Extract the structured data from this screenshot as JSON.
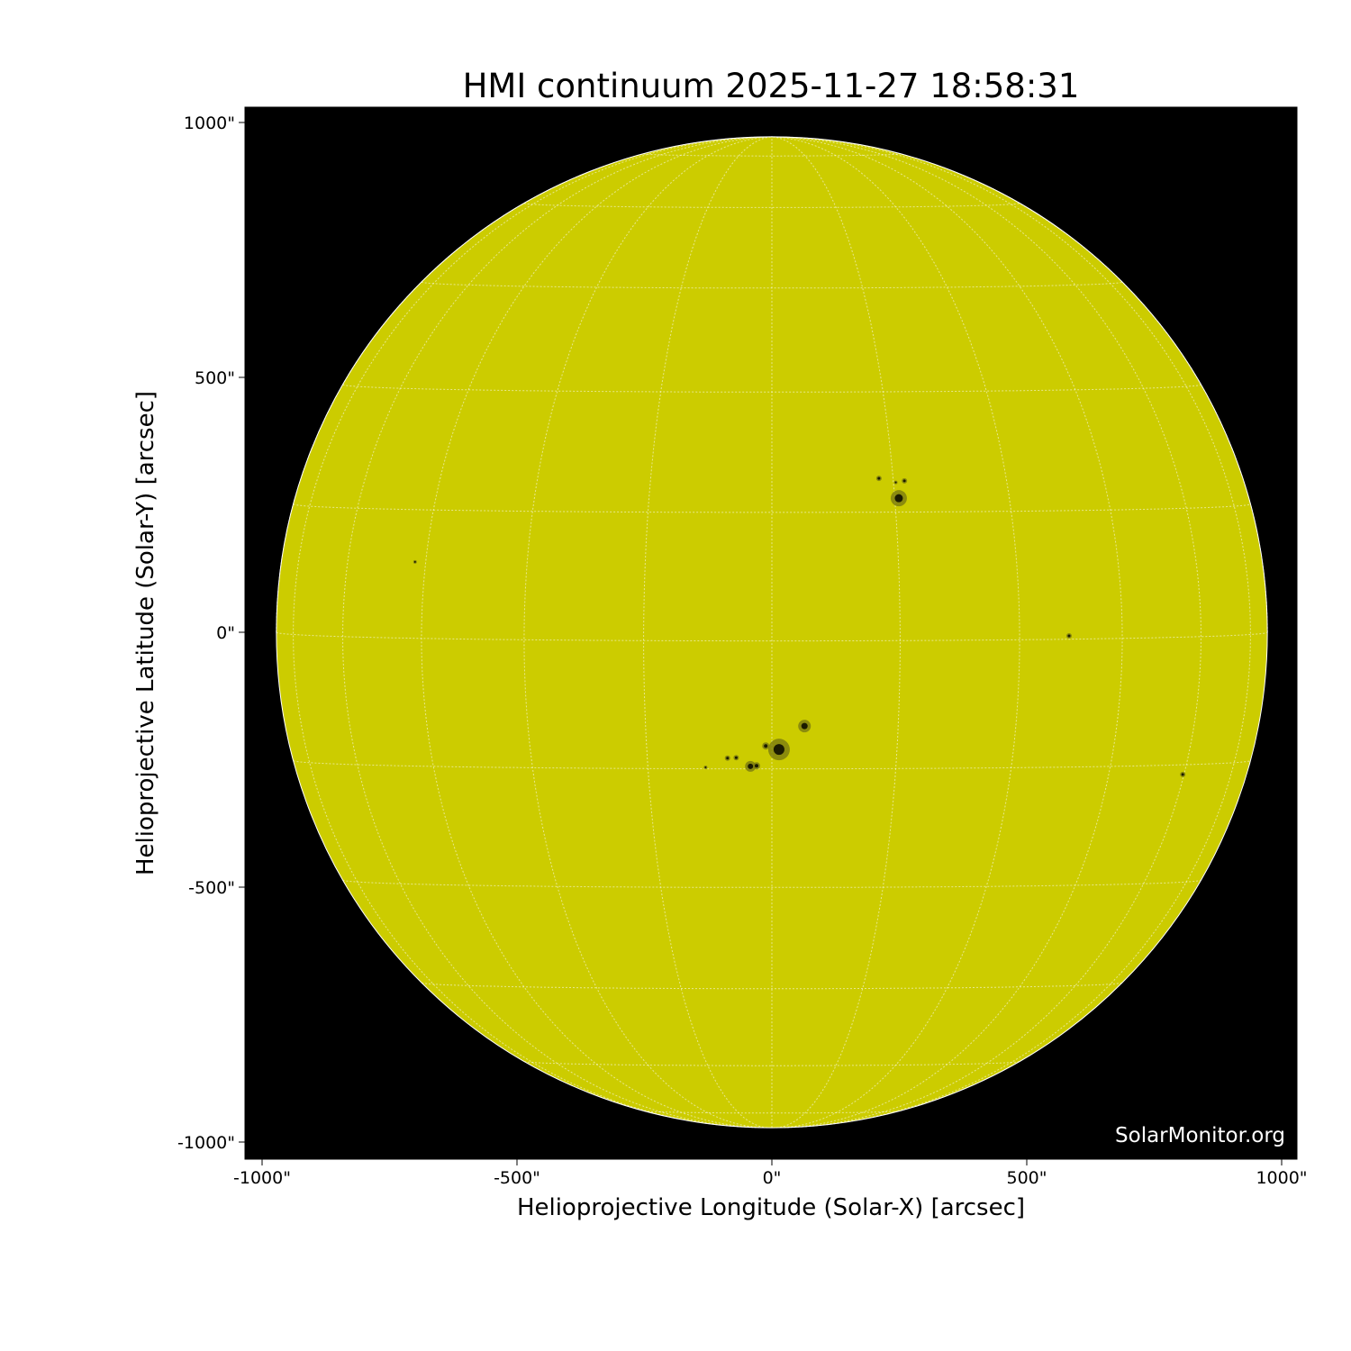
{
  "title": "HMI continuum 2025-11-27 18:58:31",
  "x_axis": {
    "label": "Helioprojective Longitude (Solar-X) [arcsec]",
    "ticks": [
      -1000,
      -500,
      0,
      500,
      1000
    ],
    "tick_labels": [
      "-1000\"",
      "-500\"",
      "0\"",
      "500\"",
      "1000\""
    ],
    "range": [
      -1033,
      1030
    ]
  },
  "y_axis": {
    "label": "Helioprojective Latitude (Solar-Y) [arcsec]",
    "ticks": [
      1000,
      500,
      0,
      -500,
      -1000
    ],
    "tick_labels": [
      "1000\"",
      "500\"",
      "0\"",
      "-500\"",
      "-1000\""
    ],
    "range": [
      -1033,
      1030
    ]
  },
  "credit": "SolarMonitor.org",
  "colors": {
    "disk": "#cccc00",
    "background": "#000000",
    "grid": "#ffffff"
  },
  "solar_radius_arcsec": 972,
  "grid_spacing_deg": 15,
  "sunspots_arcsec": [
    {
      "x": 249,
      "y": 263,
      "r": 9
    },
    {
      "x": 210,
      "y": 302,
      "r": 3
    },
    {
      "x": 260,
      "y": 297,
      "r": 3
    },
    {
      "x": 243,
      "y": 294,
      "r": 2
    },
    {
      "x": 14,
      "y": -230,
      "r": 12
    },
    {
      "x": 64,
      "y": -184,
      "r": 7
    },
    {
      "x": -12,
      "y": -223,
      "r": 4
    },
    {
      "x": -42,
      "y": -263,
      "r": 6
    },
    {
      "x": -30,
      "y": -262,
      "r": 4
    },
    {
      "x": -87,
      "y": -247,
      "r": 3
    },
    {
      "x": -70,
      "y": -246,
      "r": 3
    },
    {
      "x": -130,
      "y": -265,
      "r": 2
    },
    {
      "x": 583,
      "y": -7,
      "r": 3
    },
    {
      "x": 806,
      "y": -279,
      "r": 3
    },
    {
      "x": -700,
      "y": 138,
      "r": 2
    }
  ]
}
